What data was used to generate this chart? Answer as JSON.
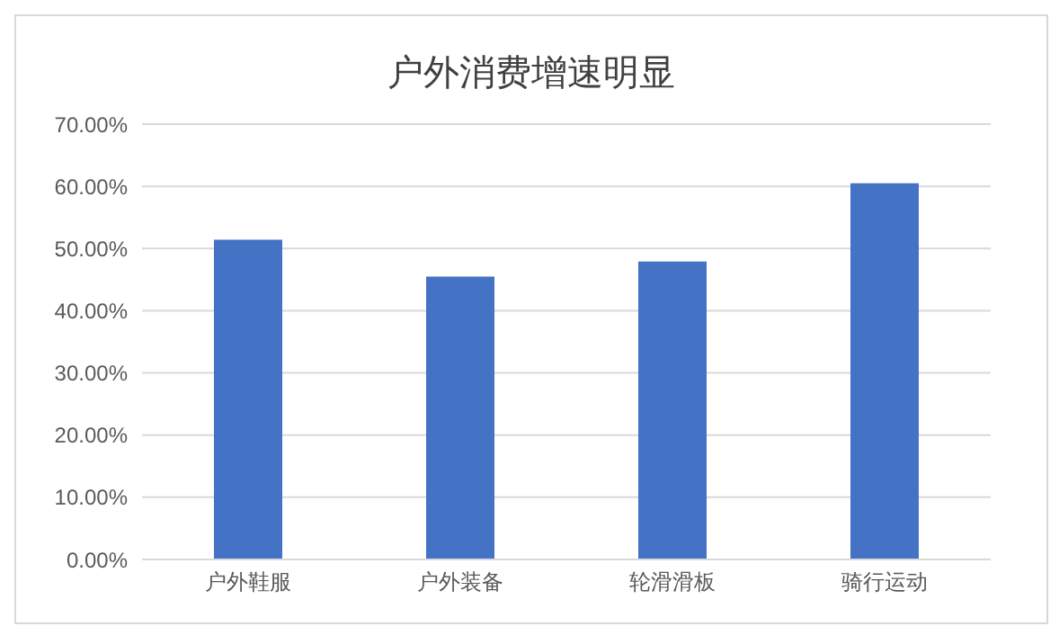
{
  "chart_data": {
    "type": "bar",
    "title": "户外消费增速明显",
    "categories": [
      "户外鞋服",
      "户外装备",
      "轮滑滑板",
      "骑行运动"
    ],
    "values": [
      51.4,
      45.5,
      47.9,
      60.5
    ],
    "color": "#4472c4",
    "ylim": [
      0,
      70
    ],
    "yticks": [
      {
        "value": 0,
        "label": "0.00%"
      },
      {
        "value": 10,
        "label": "10.00%"
      },
      {
        "value": 20,
        "label": "20.00%"
      },
      {
        "value": 30,
        "label": "30.00%"
      },
      {
        "value": 40,
        "label": "40.00%"
      },
      {
        "value": 50,
        "label": "50.00%"
      },
      {
        "value": 60,
        "label": "60.00%"
      },
      {
        "value": 70,
        "label": "70.00%"
      }
    ],
    "grid": "y"
  }
}
